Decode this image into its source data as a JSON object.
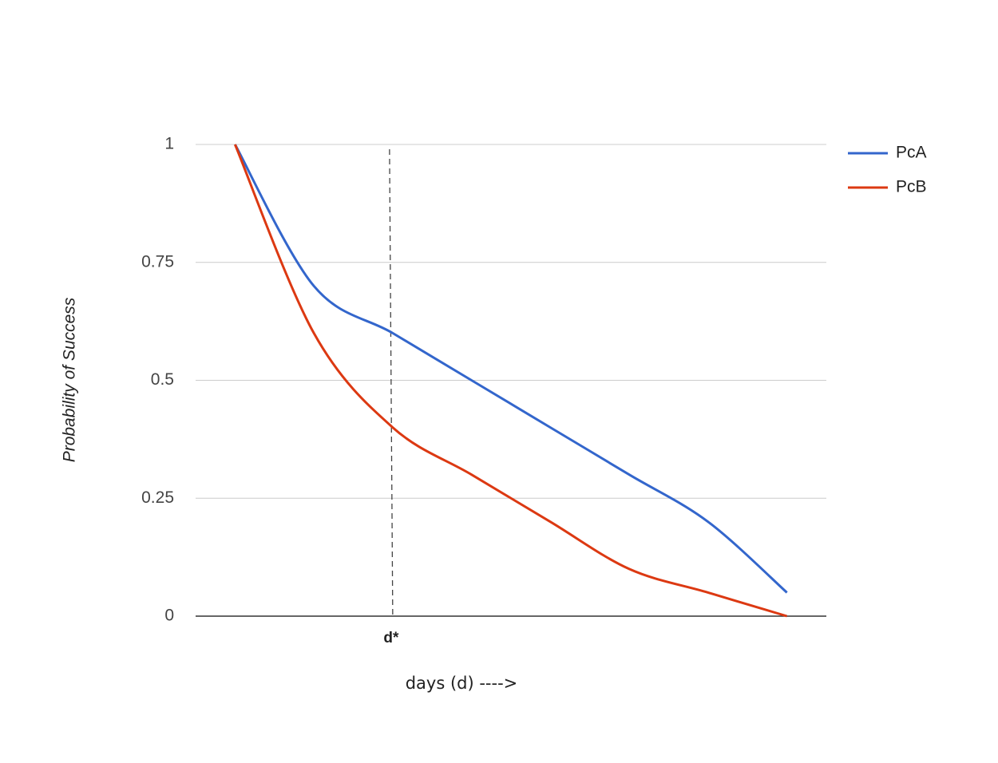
{
  "chart_data": {
    "type": "line",
    "x_label": "days (d) ---->",
    "y_label": "Probability of Success",
    "categories": [
      null,
      null,
      "d*",
      null,
      null,
      null,
      null,
      null
    ],
    "series": [
      {
        "name": "PcA",
        "color": "#3366cc",
        "values": [
          1,
          0.7,
          0.6,
          0.5,
          0.4,
          0.3,
          0.2,
          0.05
        ]
      },
      {
        "name": "PcB",
        "color": "#dc3912",
        "values": [
          1,
          0.6,
          0.4,
          0.3,
          0.2,
          0.1,
          0.05,
          0
        ]
      }
    ],
    "ylim": [
      0,
      1
    ],
    "yticks": [
      0,
      0.25,
      0.5,
      0.75,
      1
    ],
    "grid": true,
    "legend": "right"
  }
}
